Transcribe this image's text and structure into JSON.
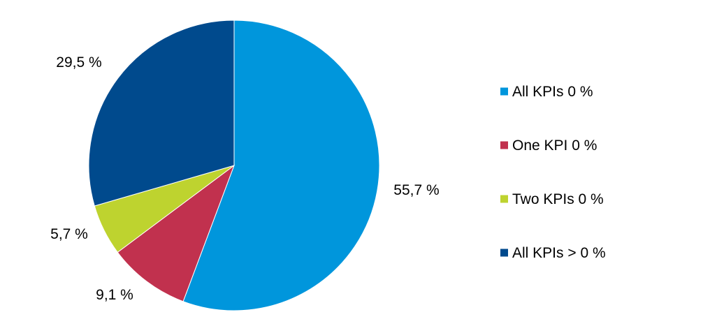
{
  "chart_data": {
    "type": "pie",
    "title": "",
    "start_angle_deg": 0,
    "direction": "clockwise",
    "decimal_separator": ",",
    "unit": "%",
    "categories": [
      "All KPIs 0 %",
      "One KPI 0 %",
      "Two KPIs 0 %",
      "All KPIs > 0 %"
    ],
    "values": [
      55.7,
      9.1,
      5.7,
      29.5
    ],
    "data_labels": [
      "55,7 %",
      "9,1 %",
      "5,7 %",
      "29,5 %"
    ],
    "colors": [
      "#0096DC",
      "#C1314E",
      "#BED32F",
      "#004A8D"
    ],
    "legend_placement": "right"
  }
}
